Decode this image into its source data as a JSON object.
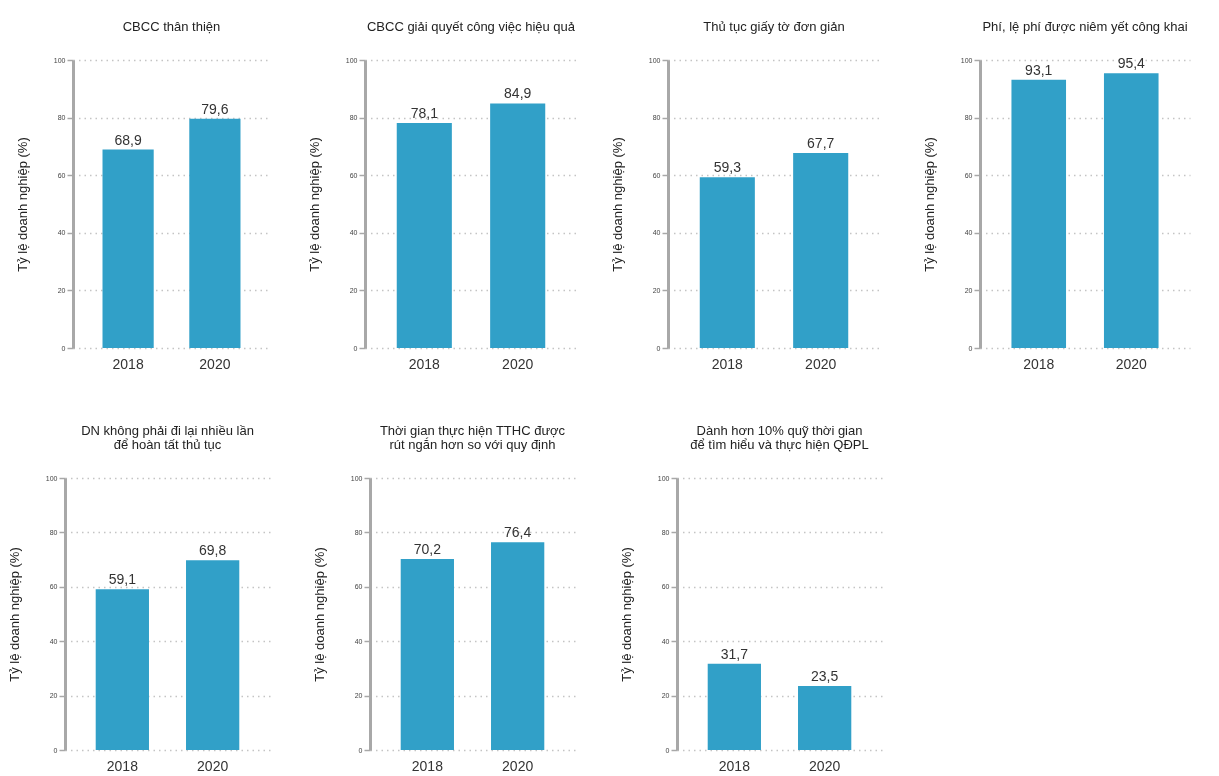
{
  "chart_data": [
    {
      "type": "bar",
      "title": "CBCC thân thiện",
      "ylabel": "Tỷ lệ doanh nghiệp (%)",
      "categories": [
        "2018",
        "2020"
      ],
      "values": [
        68.9,
        79.6
      ],
      "value_labels": [
        "68,9",
        "79,6"
      ],
      "color": "#31a0c8",
      "ylim": [
        0,
        100
      ],
      "yticks": [
        0,
        20,
        40,
        60,
        80,
        100
      ],
      "grid": "y"
    },
    {
      "type": "bar",
      "title": "CBCC giải quyết công việc hiệu quả",
      "ylabel": "Tỷ lệ doanh nghiệp (%)",
      "categories": [
        "2018",
        "2020"
      ],
      "values": [
        78.1,
        84.9
      ],
      "value_labels": [
        "78,1",
        "84,9"
      ],
      "color": "#31a0c8",
      "ylim": [
        0,
        100
      ],
      "yticks": [
        0,
        20,
        40,
        60,
        80,
        100
      ],
      "grid": "y"
    },
    {
      "type": "bar",
      "title": "Thủ tục giấy tờ đơn giản",
      "ylabel": "Tỷ lệ doanh nghiệp (%)",
      "categories": [
        "2018",
        "2020"
      ],
      "values": [
        59.3,
        67.7
      ],
      "value_labels": [
        "59,3",
        "67,7"
      ],
      "color": "#31a0c8",
      "ylim": [
        0,
        100
      ],
      "yticks": [
        0,
        20,
        40,
        60,
        80,
        100
      ],
      "grid": "y"
    },
    {
      "type": "bar",
      "title": "Phí, lệ phí được niêm yết công khai",
      "ylabel": "Tỷ lệ doanh nghiệp (%)",
      "categories": [
        "2018",
        "2020"
      ],
      "values": [
        93.1,
        95.4
      ],
      "value_labels": [
        "93,1",
        "95,4"
      ],
      "color": "#31a0c8",
      "ylim": [
        0,
        100
      ],
      "yticks": [
        0,
        20,
        40,
        60,
        80,
        100
      ],
      "grid": "y"
    },
    {
      "type": "bar",
      "title": "DN không phải đi lại nhiều lần\nđể hoàn tất thủ tục",
      "ylabel": "Tỷ lệ doanh nghiệp (%)",
      "categories": [
        "2018",
        "2020"
      ],
      "values": [
        59.1,
        69.8
      ],
      "value_labels": [
        "59,1",
        "69,8"
      ],
      "color": "#31a0c8",
      "ylim": [
        0,
        100
      ],
      "yticks": [
        0,
        20,
        40,
        60,
        80,
        100
      ],
      "grid": "y"
    },
    {
      "type": "bar",
      "title": "Thời gian thực hiện TTHC được\nrút ngắn hơn so với quy định",
      "ylabel": "Tỷ lệ doanh nghiệp (%)",
      "categories": [
        "2018",
        "2020"
      ],
      "values": [
        70.2,
        76.4
      ],
      "value_labels": [
        "70,2",
        "76,4"
      ],
      "color": "#31a0c8",
      "ylim": [
        0,
        100
      ],
      "yticks": [
        0,
        20,
        40,
        60,
        80,
        100
      ],
      "grid": "y"
    },
    {
      "type": "bar",
      "title": "Dành hơn 10% quỹ thời gian\nđể tìm hiểu và thực hiện QĐPL",
      "ylabel": "Tỷ lệ doanh nghiệp (%)",
      "categories": [
        "2018",
        "2020"
      ],
      "values": [
        31.7,
        23.5
      ],
      "value_labels": [
        "31,7",
        "23,5"
      ],
      "color": "#31a0c8",
      "ylim": [
        0,
        100
      ],
      "yticks": [
        0,
        20,
        40,
        60,
        80,
        100
      ],
      "grid": "y"
    }
  ]
}
